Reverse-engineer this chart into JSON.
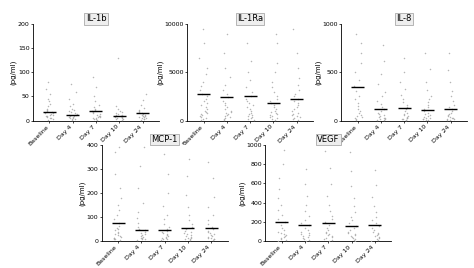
{
  "panels": [
    {
      "title": "IL-1b",
      "ylabel": "(pg/ml)",
      "ylim": [
        0,
        200
      ],
      "yticks": [
        0,
        50,
        100,
        150,
        200
      ],
      "categories": [
        "Baseline",
        "Day 4",
        "Day 7",
        "Day 10",
        "Day 24"
      ],
      "medians": [
        18,
        12,
        20,
        10,
        15
      ],
      "dot_data": [
        [
          2,
          3,
          5,
          6,
          8,
          9,
          10,
          11,
          12,
          13,
          15,
          16,
          18,
          20,
          22,
          25,
          30,
          35,
          40,
          45,
          55,
          65,
          80
        ],
        [
          2,
          3,
          4,
          5,
          6,
          7,
          8,
          9,
          10,
          11,
          12,
          14,
          16,
          18,
          20,
          22,
          25,
          30,
          35,
          45,
          60,
          75
        ],
        [
          2,
          3,
          4,
          5,
          6,
          7,
          8,
          9,
          10,
          12,
          14,
          16,
          18,
          20,
          22,
          25,
          28,
          32,
          40,
          50,
          70,
          90
        ],
        [
          2,
          3,
          4,
          5,
          6,
          7,
          8,
          9,
          10,
          11,
          12,
          14,
          16,
          18,
          20,
          25,
          30,
          130
        ],
        [
          2,
          3,
          4,
          5,
          6,
          7,
          8,
          9,
          10,
          11,
          12,
          14,
          16,
          18,
          20,
          22,
          26,
          32,
          42,
          55
        ]
      ]
    },
    {
      "title": "IL-1Ra",
      "ylabel": "(pg/ml)",
      "ylim": [
        0,
        10000
      ],
      "yticks": [
        0,
        5000,
        10000
      ],
      "categories": [
        "Baseline",
        "Day 4",
        "Day 7",
        "Day 10",
        "Day 24"
      ],
      "medians": [
        2800,
        2400,
        2600,
        1800,
        2200
      ],
      "dot_data": [
        [
          100,
          200,
          300,
          400,
          500,
          600,
          700,
          800,
          900,
          1000,
          1200,
          1400,
          1600,
          1800,
          2000,
          2200,
          2500,
          2800,
          3200,
          3600,
          4000,
          4800,
          5500,
          6500,
          8000,
          9500
        ],
        [
          100,
          200,
          300,
          400,
          500,
          600,
          700,
          800,
          900,
          1000,
          1200,
          1400,
          1600,
          1800,
          2000,
          2400,
          2800,
          3200,
          3700,
          4500,
          5500,
          7000,
          9000
        ],
        [
          100,
          200,
          300,
          400,
          500,
          600,
          700,
          800,
          1000,
          1200,
          1400,
          1600,
          1800,
          2000,
          2200,
          2600,
          3000,
          3500,
          4200,
          5000,
          6200,
          8000
        ],
        [
          100,
          200,
          300,
          400,
          500,
          600,
          700,
          800,
          900,
          1000,
          1200,
          1400,
          1600,
          1800,
          2000,
          2200,
          2600,
          3000,
          3500,
          4000,
          5000,
          6000,
          8000,
          9000
        ],
        [
          100,
          200,
          300,
          400,
          500,
          600,
          700,
          800,
          1000,
          1200,
          1400,
          1600,
          1800,
          2000,
          2200,
          2500,
          2800,
          3200,
          3700,
          4400,
          5500,
          7000,
          9500
        ]
      ]
    },
    {
      "title": "IL-8",
      "ylabel": "(pg/ml)",
      "ylim": [
        0,
        1000
      ],
      "yticks": [
        0,
        500,
        1000
      ],
      "categories": [
        "Baseline",
        "Day 4",
        "Day 7",
        "Day 10",
        "Day 24"
      ],
      "medians": [
        350,
        120,
        130,
        110,
        120
      ],
      "dot_data": [
        [
          10,
          20,
          30,
          40,
          50,
          60,
          80,
          100,
          120,
          150,
          180,
          220,
          260,
          310,
          360,
          420,
          500,
          600,
          700,
          800,
          900
        ],
        [
          5,
          10,
          15,
          20,
          25,
          30,
          40,
          50,
          60,
          70,
          80,
          100,
          120,
          140,
          170,
          200,
          250,
          300,
          380,
          480,
          620,
          780
        ],
        [
          5,
          10,
          15,
          20,
          25,
          30,
          40,
          50,
          60,
          70,
          80,
          100,
          120,
          140,
          160,
          190,
          220,
          270,
          330,
          400,
          500,
          650
        ],
        [
          5,
          10,
          15,
          20,
          25,
          30,
          40,
          50,
          60,
          70,
          80,
          100,
          120,
          140,
          160,
          190,
          220,
          260,
          320,
          400,
          530,
          700
        ],
        [
          5,
          10,
          15,
          20,
          25,
          30,
          40,
          50,
          60,
          70,
          80,
          100,
          120,
          140,
          160,
          200,
          250,
          310,
          400,
          520,
          700
        ]
      ]
    },
    {
      "title": "MCP-1",
      "ylabel": "(pg/ml)",
      "ylim": [
        0,
        400
      ],
      "yticks": [
        0,
        100,
        200,
        300,
        400
      ],
      "categories": [
        "Baseline",
        "Day 4",
        "Day 7",
        "Day 10",
        "Day 24"
      ],
      "medians": [
        75,
        45,
        45,
        55,
        55
      ],
      "dot_data": [
        [
          5,
          8,
          10,
          12,
          15,
          18,
          20,
          25,
          30,
          35,
          40,
          45,
          50,
          55,
          65,
          75,
          90,
          110,
          130,
          150,
          180,
          220,
          280,
          370,
          390
        ],
        [
          5,
          8,
          10,
          12,
          15,
          18,
          20,
          25,
          28,
          32,
          38,
          45,
          52,
          60,
          75,
          95,
          120,
          160,
          220,
          310,
          390
        ],
        [
          5,
          8,
          10,
          12,
          15,
          18,
          20,
          25,
          28,
          32,
          38,
          44,
          50,
          60,
          72,
          90,
          110,
          145,
          200,
          280,
          360
        ],
        [
          5,
          8,
          10,
          12,
          15,
          18,
          20,
          24,
          28,
          32,
          38,
          44,
          50,
          60,
          72,
          88,
          110,
          140,
          190,
          270,
          340
        ],
        [
          5,
          8,
          10,
          12,
          15,
          18,
          20,
          24,
          28,
          32,
          38,
          44,
          50,
          60,
          72,
          88,
          108,
          140,
          185,
          260,
          330
        ]
      ]
    },
    {
      "title": "VEGF",
      "ylabel": "(pg/ml)",
      "ylim": [
        0,
        1000
      ],
      "yticks": [
        0,
        200,
        400,
        600,
        800,
        1000
      ],
      "categories": [
        "Baseline",
        "Day 4",
        "Day 7",
        "Day 10",
        "Day 24"
      ],
      "medians": [
        200,
        170,
        190,
        160,
        170
      ],
      "dot_data": [
        [
          5,
          10,
          20,
          30,
          40,
          50,
          60,
          70,
          80,
          100,
          120,
          140,
          170,
          200,
          230,
          270,
          320,
          380,
          450,
          540,
          650,
          800,
          950
        ],
        [
          5,
          10,
          20,
          30,
          40,
          50,
          60,
          70,
          80,
          100,
          120,
          140,
          165,
          190,
          220,
          260,
          310,
          380,
          470,
          590,
          750
        ],
        [
          5,
          10,
          20,
          30,
          40,
          50,
          60,
          70,
          80,
          100,
          120,
          140,
          165,
          195,
          225,
          265,
          315,
          380,
          470,
          590,
          760,
          940
        ],
        [
          5,
          10,
          20,
          30,
          40,
          50,
          60,
          70,
          80,
          100,
          120,
          140,
          160,
          185,
          215,
          250,
          300,
          365,
          450,
          570,
          730,
          920
        ],
        [
          5,
          10,
          20,
          30,
          40,
          50,
          60,
          70,
          80,
          100,
          120,
          140,
          162,
          187,
          215,
          255,
          305,
          370,
          460,
          580,
          740
        ]
      ]
    }
  ],
  "background_color": "#ffffff",
  "dot_color": "#aaaaaa",
  "median_color": "#000000",
  "title_box_facecolor": "#eeeeee",
  "title_box_edgecolor": "#aaaaaa",
  "tick_label_fontsize": 4.5,
  "title_fontsize": 6.0,
  "ylabel_fontsize": 5.0
}
